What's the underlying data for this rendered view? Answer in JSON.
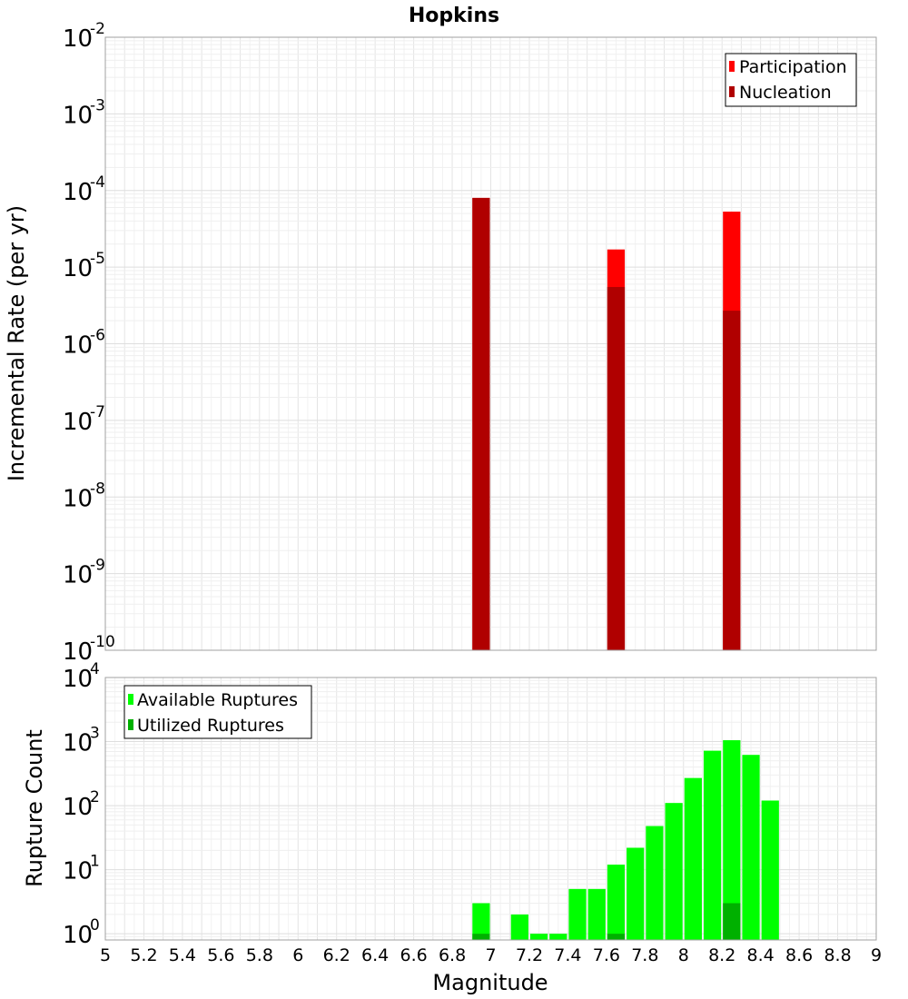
{
  "chart_data": [
    {
      "type": "bar",
      "title": "Hopkins",
      "xlabel": "Magnitude",
      "ylabel": "Incremental Rate (per yr)",
      "yscale": "log",
      "xlim": [
        5,
        9
      ],
      "ylim": [
        1e-10,
        0.01
      ],
      "bar_width": 0.1,
      "grid": true,
      "legend_position": "top-right",
      "y_ticks": [
        {
          "base": "10",
          "exp": "-10",
          "value": 1e-10
        },
        {
          "base": "10",
          "exp": "-9",
          "value": 1e-09
        },
        {
          "base": "10",
          "exp": "-8",
          "value": 1e-08
        },
        {
          "base": "10",
          "exp": "-7",
          "value": 1e-07
        },
        {
          "base": "10",
          "exp": "-6",
          "value": 1e-06
        },
        {
          "base": "10",
          "exp": "-5",
          "value": 1e-05
        },
        {
          "base": "10",
          "exp": "-4",
          "value": 0.0001
        },
        {
          "base": "10",
          "exp": "-3",
          "value": 0.001
        },
        {
          "base": "10",
          "exp": "-2",
          "value": 0.01
        }
      ],
      "series": [
        {
          "name": "Participation",
          "color": "#ff0000",
          "x": [
            6.95,
            7.65,
            8.25
          ],
          "values": [
            8e-05,
            1.7e-05,
            5.3e-05
          ]
        },
        {
          "name": "Nucleation",
          "color": "#b00000",
          "x": [
            6.95,
            7.65,
            8.25
          ],
          "values": [
            8e-05,
            5.5e-06,
            2.7e-06
          ]
        }
      ]
    },
    {
      "type": "bar",
      "xlabel": "Magnitude",
      "ylabel": "Rupture Count",
      "yscale": "log",
      "xlim": [
        5,
        9
      ],
      "ylim": [
        0.8,
        10000
      ],
      "bar_width": 0.1,
      "grid": true,
      "legend_position": "top-left",
      "x_ticks": [
        "5",
        "5.2",
        "5.4",
        "5.6",
        "5.8",
        "6",
        "6.2",
        "6.4",
        "6.6",
        "6.8",
        "7",
        "7.2",
        "7.4",
        "7.6",
        "7.8",
        "8",
        "8.2",
        "8.4",
        "8.6",
        "8.8",
        "9"
      ],
      "y_ticks": [
        {
          "base": "10",
          "exp": "0",
          "value": 1
        },
        {
          "base": "10",
          "exp": "1",
          "value": 10
        },
        {
          "base": "10",
          "exp": "2",
          "value": 100
        },
        {
          "base": "10",
          "exp": "3",
          "value": 1000
        },
        {
          "base": "10",
          "exp": "4",
          "value": 10000
        }
      ],
      "series": [
        {
          "name": "Available Ruptures",
          "color": "#00ff00",
          "x": [
            6.95,
            7.15,
            7.25,
            7.35,
            7.45,
            7.55,
            7.65,
            7.75,
            7.85,
            7.95,
            8.05,
            8.15,
            8.25,
            8.35,
            8.45
          ],
          "values": [
            3,
            2,
            1,
            1,
            5,
            5,
            12,
            22,
            48,
            110,
            270,
            720,
            1050,
            620,
            120
          ]
        },
        {
          "name": "Utilized Ruptures",
          "color": "#00b000",
          "x": [
            6.95,
            7.65,
            8.25
          ],
          "values": [
            1,
            1,
            3
          ]
        }
      ]
    }
  ]
}
